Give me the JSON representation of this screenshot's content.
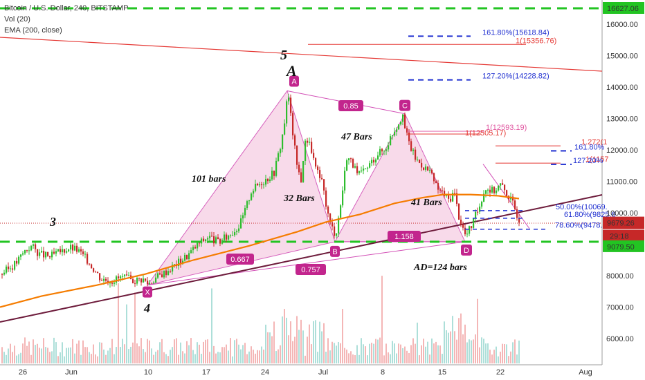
{
  "header": {
    "title": "Bitcoin / U.S. Dollar, 240, BITSTAMP",
    "indicator1": "Vol (20)",
    "indicator2": "EMA (200, close)"
  },
  "colors": {
    "up": "#26a69a",
    "green_candle": "#2ebd2e",
    "down": "#c62828",
    "ema": "#f57c00",
    "pattern_fill": "#f8d7e8",
    "pattern_line": "#d24fb6",
    "badge": "#c2258d",
    "support": "#22c422",
    "fib_blue": "#1f2fd0",
    "trend_red": "#e53935",
    "trend_dark": "#6d1b3b"
  },
  "chart_data": {
    "type": "candlestick",
    "symbol": "Bitcoin / U.S. Dollar",
    "interval": "240",
    "exchange": "BITSTAMP",
    "x_ticks": [
      "26",
      "Jun",
      "10",
      "17",
      "24",
      "Jul",
      "8",
      "15",
      "22",
      "Aug"
    ],
    "y_ticks": [
      "6000.00",
      "7000.00",
      "8000.00",
      "9000.00",
      "10000.00",
      "11000.00",
      "12000.00",
      "13000.00",
      "14000.00",
      "15000.00",
      "16000.00"
    ],
    "ylim": [
      5500,
      16800
    ],
    "price_labels": {
      "top": "16627.06",
      "current": "9679.26",
      "countdown": "29:18",
      "support": "9079.50"
    },
    "pattern_points": [
      {
        "label": "X",
        "value": 7700
      },
      {
        "label": "A",
        "value": 13880
      },
      {
        "label": "B",
        "value": 9080
      },
      {
        "label": "C",
        "value": 13150
      },
      {
        "label": "D",
        "value": 9080
      }
    ],
    "ratios": [
      "0.667",
      "0.85",
      "1.158",
      "0.757"
    ],
    "bar_counts": [
      "101 bars",
      "32 Bars",
      "47 Bars",
      "41 Bars",
      "AD=124 bars"
    ],
    "wave_labels": [
      "3",
      "4",
      "5",
      "A"
    ],
    "fib_levels": [
      {
        "label": "161.80%(15618.84)",
        "value": 15618.84
      },
      {
        "label": "1(15356.76)",
        "value": 15356.76
      },
      {
        "label": "127.20%(14228.82)",
        "value": 14228.82
      },
      {
        "label": "1(12593.19)",
        "value": 12593.19
      },
      {
        "label": "1(12505.17)",
        "value": 12505.17
      },
      {
        "label": "1.272(1",
        "value": 12130
      },
      {
        "label": "161.80%",
        "value": 11970
      },
      {
        "label": "1(1157",
        "value": 11580
      },
      {
        "label": "127.20%",
        "value": 11540
      },
      {
        "label": "50.00%(10069.",
        "value": 10069
      },
      {
        "label": "61.80%(9825.6",
        "value": 9825.6
      },
      {
        "label": "78.60%(9478.3",
        "value": 9478.3
      }
    ],
    "ema200": [
      [
        0,
        7000
      ],
      [
        60,
        7350
      ],
      [
        140,
        7700
      ],
      [
        210,
        8050
      ],
      [
        280,
        8500
      ],
      [
        360,
        8950
      ],
      [
        430,
        9400
      ],
      [
        470,
        9700
      ],
      [
        520,
        9950
      ],
      [
        570,
        10300
      ],
      [
        610,
        10480
      ],
      [
        640,
        10580
      ],
      [
        680,
        10580
      ],
      [
        720,
        10540
      ],
      [
        750,
        10450
      ]
    ]
  }
}
